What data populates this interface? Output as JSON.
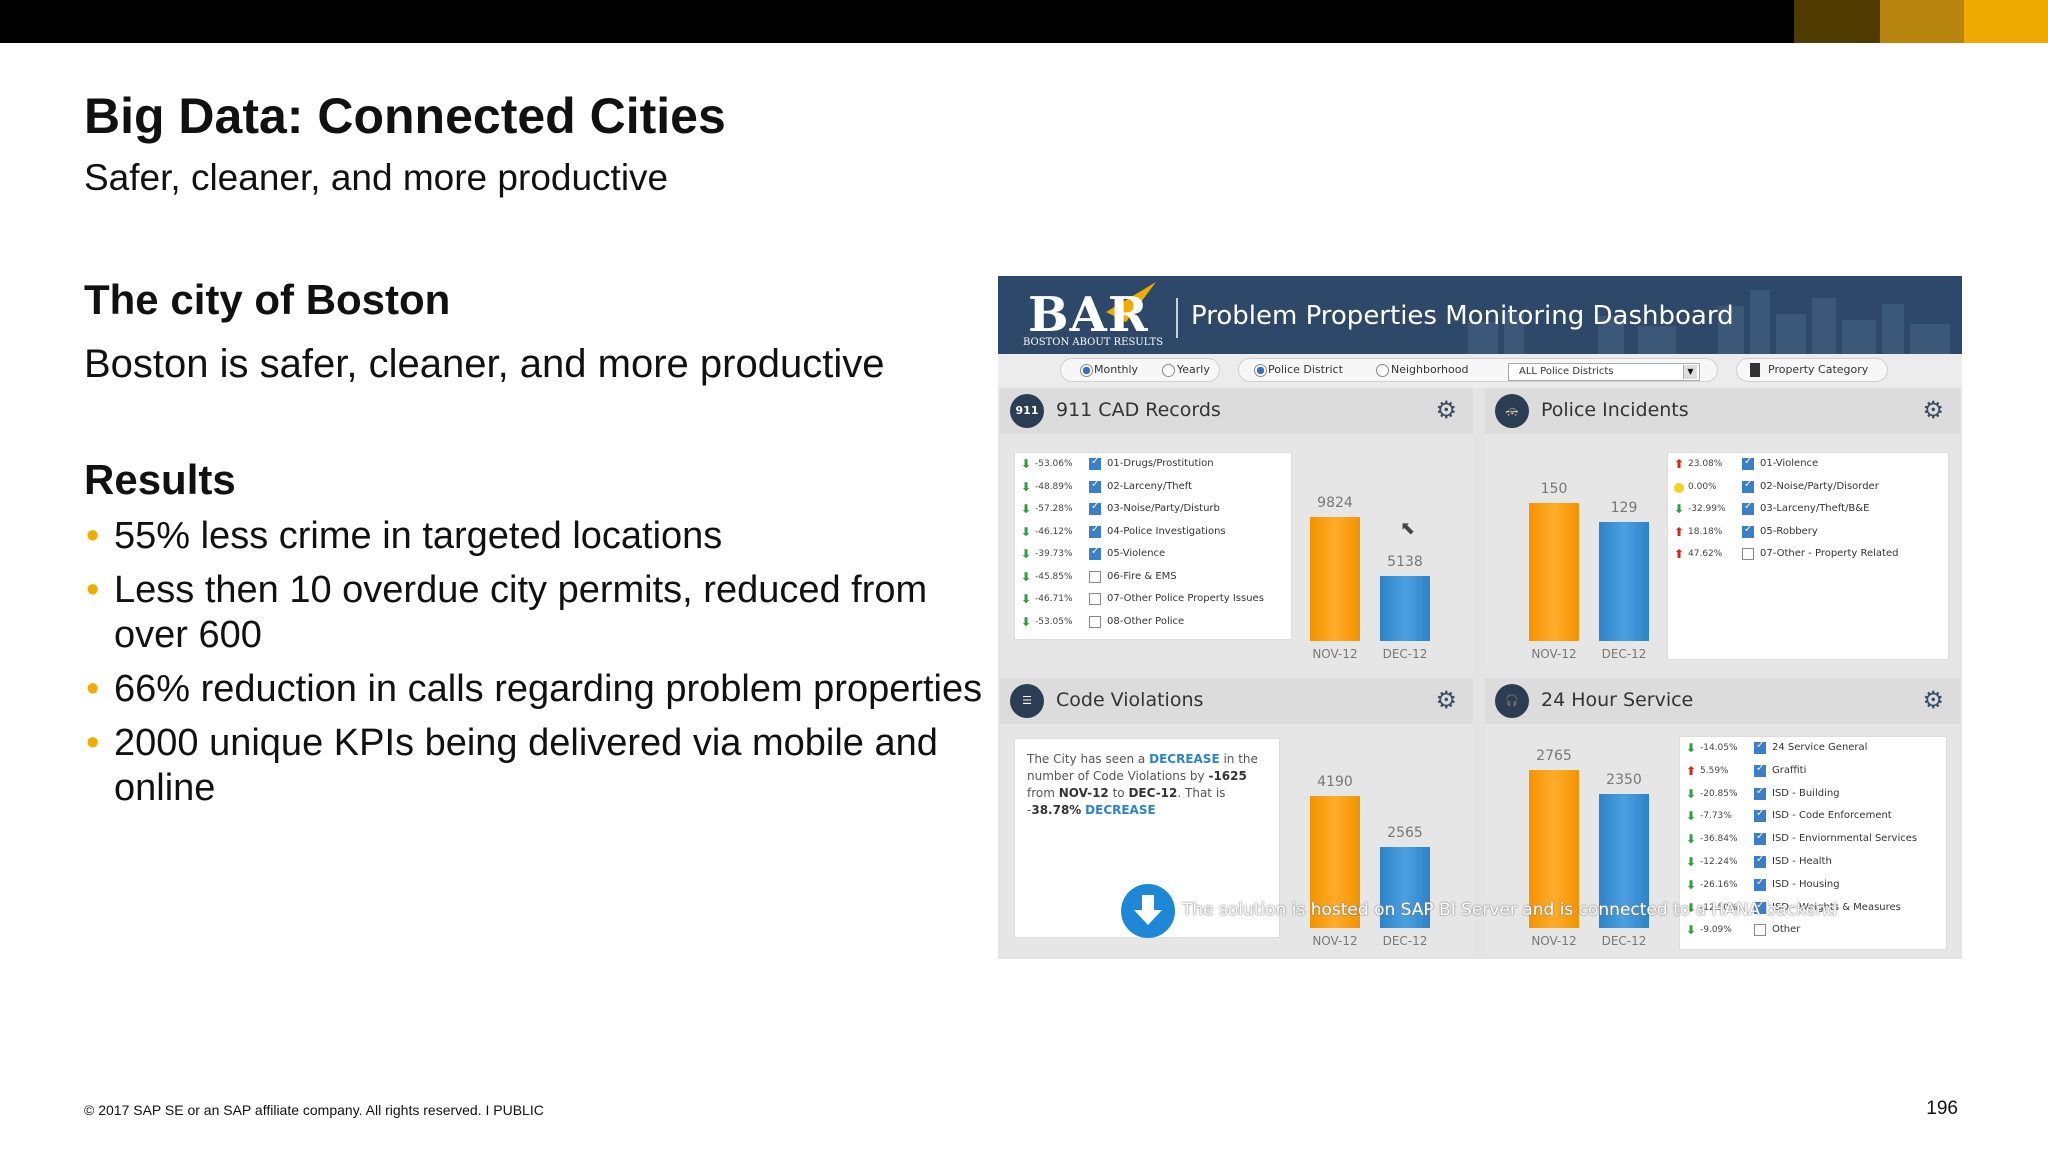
{
  "colors": {
    "accent": "#f0ab00",
    "dark_blue": "#2d4868",
    "orange": "#f39300",
    "blue": "#2e82c8"
  },
  "slide": {
    "title": "Big Data: Connected Cities",
    "subtitle": "Safer, cleaner, and more productive",
    "section1_heading": "The city of Boston",
    "section1_body": "Boston is safer, cleaner, and more productive",
    "section2_heading": "Results",
    "bullets": [
      "55% less crime in targeted locations",
      "Less then 10 overdue city permits, reduced from over 600",
      "66% reduction in calls regarding problem properties",
      "2000 unique KPIs being delivered via mobile and online"
    ],
    "footer": "© 2017 SAP SE or an SAP affiliate company. All rights reserved.   I   PUBLIC",
    "page_number": "196"
  },
  "dashboard": {
    "logo": "BAR",
    "logo_subtitle": "BOSTON ABOUT RESULTS",
    "title": "Problem Properties Monitoring Dashboard",
    "filters": {
      "monthly": "Monthly",
      "yearly": "Yearly",
      "police_district": "Police District",
      "neighborhood": "Neighborhood",
      "district_select": "ALL Police Districts",
      "property_category": "Property Category"
    },
    "caption": "The solution is hosted on SAP BI Server and is connected to a HANA backend",
    "panels": {
      "cad": {
        "title": "911 CAD Records",
        "icon_text": "911",
        "rows": [
          {
            "pct": "-53.06%",
            "label": "01-Drugs/Prostitution",
            "checked": true
          },
          {
            "pct": "-48.89%",
            "label": "02-Larceny/Theft",
            "checked": true
          },
          {
            "pct": "-57.28%",
            "label": "03-Noise/Party/Disturb",
            "checked": true
          },
          {
            "pct": "-46.12%",
            "label": "04-Police Investigations",
            "checked": true
          },
          {
            "pct": "-39.73%",
            "label": "05-Violence",
            "checked": true
          },
          {
            "pct": "-45.85%",
            "label": "06-Fire & EMS",
            "checked": false
          },
          {
            "pct": "-46.71%",
            "label": "07-Other Police Property Issues",
            "checked": false
          },
          {
            "pct": "-53.05%",
            "label": "08-Other Police",
            "checked": false
          }
        ],
        "bars": [
          {
            "label": "NOV-12",
            "value": 9824
          },
          {
            "label": "DEC-12",
            "value": 5138
          }
        ]
      },
      "police": {
        "title": "Police Incidents",
        "rows": [
          {
            "pct": "23.08%",
            "dir": "up",
            "label": "01-Violence",
            "checked": true
          },
          {
            "pct": "0.00%",
            "dir": "flat",
            "label": "02-Noise/Party/Disorder",
            "checked": true
          },
          {
            "pct": "-32.99%",
            "dir": "down",
            "label": "03-Larceny/Theft/B&E",
            "checked": true
          },
          {
            "pct": "18.18%",
            "dir": "up",
            "label": "05-Robbery",
            "checked": true
          },
          {
            "pct": "47.62%",
            "dir": "up",
            "label": "07-Other - Property Related",
            "checked": false
          }
        ],
        "bars": [
          {
            "label": "NOV-12",
            "value": 150
          },
          {
            "label": "DEC-12",
            "value": 129
          }
        ]
      },
      "code": {
        "title": "Code Violations",
        "text_a": "The City has seen a ",
        "text_kw": "DECREASE",
        "text_b": " in the number of Code Violations by ",
        "delta": "-1625",
        "text_c": " from ",
        "from": "NOV-12",
        "text_d": " to ",
        "to": "DEC-12",
        "text_e": ". That is -",
        "pct": "38.78%",
        "text_f": " ",
        "kw2": "DECREASE",
        "bars": [
          {
            "label": "NOV-12",
            "value": 4190
          },
          {
            "label": "DEC-12",
            "value": 2565
          }
        ]
      },
      "service": {
        "title": "24 Hour Service",
        "rows": [
          {
            "pct": "-14.05%",
            "dir": "down",
            "label": "24 Service General",
            "checked": true
          },
          {
            "pct": "5.59%",
            "dir": "up",
            "label": "Graffiti",
            "checked": true
          },
          {
            "pct": "-20.85%",
            "dir": "down",
            "label": "ISD - Building",
            "checked": true
          },
          {
            "pct": "-7.73%",
            "dir": "down",
            "label": "ISD - Code Enforcement",
            "checked": true
          },
          {
            "pct": "-36.84%",
            "dir": "down",
            "label": "ISD - Enviornmental Services",
            "checked": true
          },
          {
            "pct": "-12.24%",
            "dir": "down",
            "label": "ISD - Health",
            "checked": true
          },
          {
            "pct": "-26.16%",
            "dir": "down",
            "label": "ISD - Housing",
            "checked": true
          },
          {
            "pct": "-12.50%",
            "dir": "down",
            "label": "ISD - Weights & Measures",
            "checked": true
          },
          {
            "pct": "-9.09%",
            "dir": "down",
            "label": "Other",
            "checked": false
          }
        ],
        "bars": [
          {
            "label": "NOV-12",
            "value": 2765
          },
          {
            "label": "DEC-12",
            "value": 2350
          }
        ]
      }
    }
  }
}
